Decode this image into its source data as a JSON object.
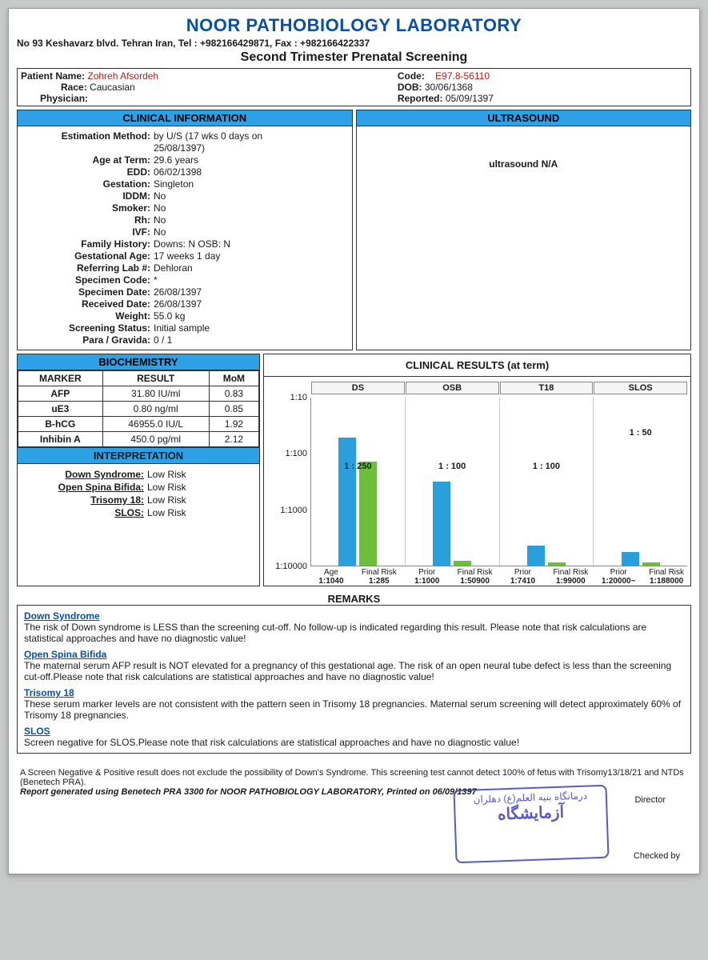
{
  "header": {
    "lab_name": "NOOR PATHOBIOLOGY LABORATORY",
    "address": "No 93 Keshavarz blvd. Tehran Iran, Tel : +982166429871, Fax : +982166422337",
    "subtitle": "Second Trimester Prenatal Screening"
  },
  "patient": {
    "name_label": "Patient Name:",
    "name": "Zohreh Afsordeh",
    "race_label": "Race:",
    "race": "Caucasian",
    "physician_label": "Physician:",
    "physician": "",
    "code_label": "Code:",
    "code": "E97.8-56110",
    "dob_label": "DOB:",
    "dob": "30/06/1368",
    "reported_label": "Reported:",
    "reported": "05/09/1397"
  },
  "sections": {
    "clinical_info": "CLINICAL INFORMATION",
    "ultrasound": "ULTRASOUND",
    "biochemistry": "BIOCHEMISTRY",
    "interpretation": "INTERPRETATION",
    "results": "CLINICAL RESULTS (at term)",
    "remarks": "REMARKS"
  },
  "clinical": [
    {
      "label": "Estimation Method:",
      "value": "by U/S (17 wks 0 days on"
    },
    {
      "label": "",
      "value": "25/08/1397)"
    },
    {
      "label": "Age at Term:",
      "value": "29.6 years"
    },
    {
      "label": "EDD:",
      "value": "06/02/1398"
    },
    {
      "label": "Gestation:",
      "value": "Singleton"
    },
    {
      "label": "IDDM:",
      "value": "No"
    },
    {
      "label": "Smoker:",
      "value": "No"
    },
    {
      "label": "Rh:",
      "value": "No"
    },
    {
      "label": "IVF:",
      "value": "No"
    },
    {
      "label": "Family History:",
      "value": "Downs: N   OSB: N"
    },
    {
      "label": "Gestational Age:",
      "value": "17 weeks 1 day"
    },
    {
      "label": "Referring Lab #:",
      "value": "Dehloran"
    },
    {
      "label": "Specimen Code:",
      "value": "*"
    },
    {
      "label": "Specimen Date:",
      "value": "26/08/1397"
    },
    {
      "label": "Received Date:",
      "value": "26/08/1397"
    },
    {
      "label": "Weight:",
      "value": "55.0 kg"
    },
    {
      "label": "Screening Status:",
      "value": "Initial sample"
    },
    {
      "label": "Para / Gravida:",
      "value": "0 / 1"
    }
  ],
  "ultrasound_text": "ultrasound N/A",
  "biochem": {
    "cols": [
      "MARKER",
      "RESULT",
      "MoM"
    ],
    "rows": [
      [
        "AFP",
        "31.80 IU/ml",
        "0.83"
      ],
      [
        "uE3",
        "0.80 ng/ml",
        "0.85"
      ],
      [
        "B-hCG",
        "46955.0 IU/L",
        "1.92"
      ],
      [
        "Inhibin A",
        "450.0 pg/ml",
        "2.12"
      ]
    ]
  },
  "interpretation": [
    {
      "label": "Down Syndrome:",
      "value": "Low Risk"
    },
    {
      "label": "Open Spina Bifida:",
      "value": "Low Risk"
    },
    {
      "label": "Trisomy 18:",
      "value": "Low Risk"
    },
    {
      "label": "SLOS:",
      "value": "Low Risk"
    }
  ],
  "chart": {
    "y_ticks": [
      "1:10",
      "1:100",
      "1:1000",
      "1:10000"
    ],
    "colors": {
      "blue": "#2a9fdc",
      "green": "#6bbf3a",
      "bg": "#ffffff"
    },
    "groups": [
      {
        "title": "DS",
        "ratio_text": "1 : 250",
        "bars": [
          {
            "h_pct": 76,
            "color": "#2a9fdc"
          },
          {
            "h_pct": 62,
            "color": "#6bbf3a"
          }
        ],
        "x_top": [
          "Age",
          "Final Risk"
        ],
        "x_bot": [
          "1:1040",
          "1:285"
        ]
      },
      {
        "title": "OSB",
        "ratio_text": "1 : 100",
        "bars": [
          {
            "h_pct": 50,
            "color": "#2a9fdc"
          },
          {
            "h_pct": 3,
            "color": "#6bbf3a"
          }
        ],
        "x_top": [
          "Prior",
          "Final Risk"
        ],
        "x_bot": [
          "1:1000",
          "1:50900"
        ]
      },
      {
        "title": "T18",
        "ratio_text": "1 : 100",
        "bars": [
          {
            "h_pct": 12,
            "color": "#2a9fdc"
          },
          {
            "h_pct": 2,
            "color": "#6bbf3a"
          }
        ],
        "x_top": [
          "Prior",
          "Final Risk"
        ],
        "x_bot": [
          "1:7410",
          "1:99000"
        ]
      },
      {
        "title": "SLOS",
        "ratio_text": "1 : 50",
        "ratio_high": true,
        "bars": [
          {
            "h_pct": 8,
            "color": "#2a9fdc"
          },
          {
            "h_pct": 2,
            "color": "#6bbf3a"
          }
        ],
        "x_top": [
          "Prior",
          "Final Risk"
        ],
        "x_bot": [
          "1:20000~",
          "1:188000"
        ]
      }
    ]
  },
  "remarks": [
    {
      "title": "Down Syndrome",
      "text": "The risk of Down syndrome is LESS than the screening cut-off. No follow-up is indicated regarding this result. Please note that risk calculations are statistical approaches and have no diagnostic value!"
    },
    {
      "title": "Open Spina Bifida",
      "text": "The maternal serum AFP result is NOT elevated for a pregnancy of this gestational age.  The risk of an open neural tube defect is less than the screening cut-off.Please note that risk calculations are statistical approaches and have no diagnostic value!"
    },
    {
      "title": "Trisomy 18",
      "text": "These serum marker levels are not consistent with the pattern seen in Trisomy 18 pregnancies. Maternal serum screening will detect approximately 60% of Trisomy 18 pregnancies."
    },
    {
      "title": "SLOS",
      "text": "Screen negative for SLOS.Please note that risk calculations are statistical approaches and have no diagnostic value!"
    }
  ],
  "footer": {
    "disclaimer": "A Screen Negative & Positive result does not exclude the possibility of Down's Syndrome. This screening test cannot detect 100% of fetus with Trisomy13/18/21 and NTDs (Benetech PRA).",
    "generated": "Report generated using Benetech PRA 3300 for NOOR PATHOBIOLOGY LABORATORY, Printed on 06/09/1397",
    "director": "Director",
    "checked": "Checked by",
    "stamp_line1": "درمانگاه بنیه العلم(ع) دهلران",
    "stamp_line2": "آزمایشگاه"
  }
}
